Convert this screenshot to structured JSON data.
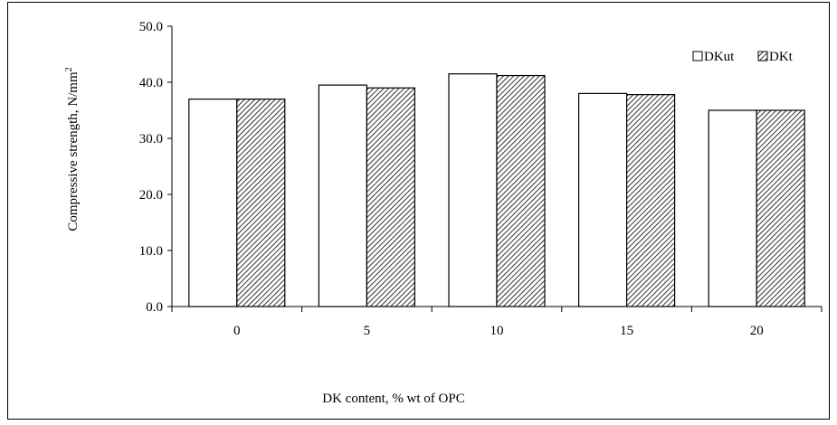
{
  "chart_data": {
    "type": "bar",
    "categories": [
      "0",
      "5",
      "10",
      "15",
      "20"
    ],
    "series": [
      {
        "name": "DKut",
        "values": [
          37.0,
          39.5,
          41.5,
          38.0,
          35.0
        ],
        "fill": "#ffffff",
        "pattern": "none"
      },
      {
        "name": "DKt",
        "values": [
          37.0,
          39.0,
          41.2,
          37.8,
          35.0
        ],
        "fill": "#ffffff",
        "pattern": "diagonal-hatch"
      }
    ],
    "title": "",
    "xlabel": "DK content, % wt of OPC",
    "ylabel": "Compressive strength, N/mm",
    "ylabel_superscript": "2",
    "ylim": [
      0,
      50
    ],
    "yticks": [
      "0.0",
      "10.0",
      "20.0",
      "30.0",
      "40.0",
      "50.0"
    ],
    "grid": false,
    "legend_position": "top-right",
    "colors": {
      "stroke": "#000000",
      "background": "#ffffff",
      "hatch": "#000000"
    }
  }
}
